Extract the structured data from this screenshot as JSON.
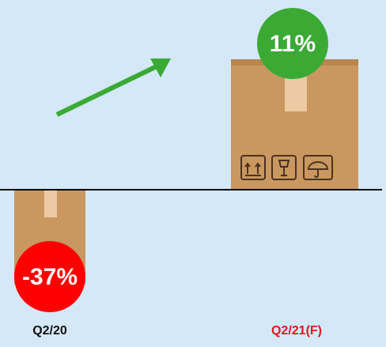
{
  "items": [
    {
      "label": "Q2/20",
      "change": "-37%"
    },
    {
      "label": "Q2/21(F)",
      "change": "11%"
    }
  ]
}
